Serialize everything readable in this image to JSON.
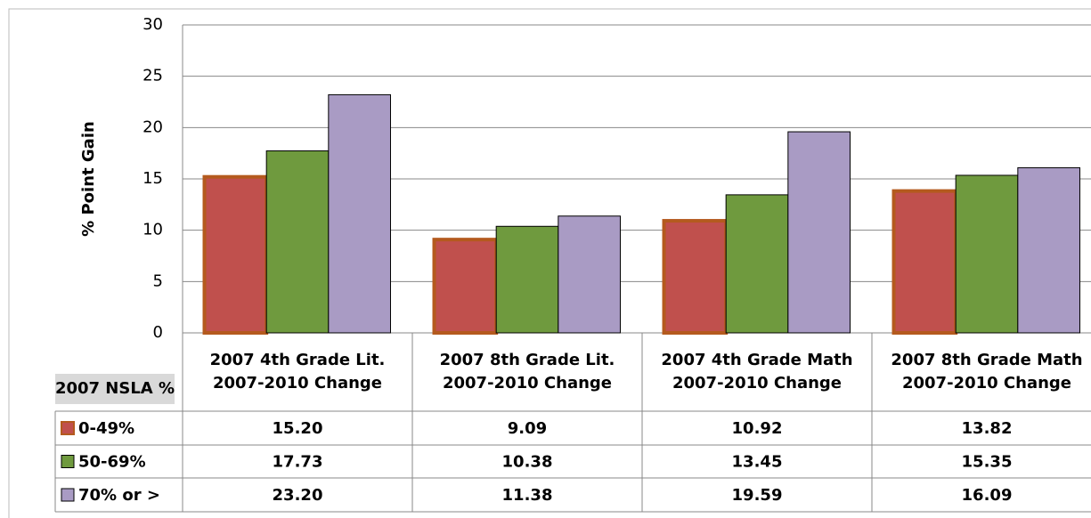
{
  "chart_data": {
    "type": "bar",
    "y_label": "% Point Gain",
    "table_header": "2007 NSLA %",
    "categories": [
      "2007 4th Grade Lit.\n2007-2010 Change",
      "2007 8th Grade Lit.\n2007-2010 Change",
      "2007 4th Grade Math\n2007-2010 Change",
      "2007 8th Grade Math\n2007-2010 Change"
    ],
    "series": [
      {
        "name": "0-49%",
        "color": "#c0504d",
        "edge_color": "#b45a1e",
        "values": [
          15.2,
          9.09,
          10.92,
          13.82
        ],
        "value_labels": [
          "15.20",
          "9.09",
          "10.92",
          "13.82"
        ]
      },
      {
        "name": "50-69%",
        "color": "#6f9a3e",
        "edge_color": "#000000",
        "values": [
          17.73,
          10.38,
          13.45,
          15.35
        ],
        "value_labels": [
          "17.73",
          "10.38",
          "13.45",
          "15.35"
        ]
      },
      {
        "name": "70% or >",
        "color": "#a99bc4",
        "edge_color": "#000000",
        "values": [
          23.2,
          11.38,
          19.59,
          16.09
        ],
        "value_labels": [
          "23.20",
          "11.38",
          "19.59",
          "16.09"
        ]
      }
    ],
    "ylim": [
      0,
      30
    ],
    "yticks": [
      0,
      5,
      10,
      15,
      20,
      25,
      30
    ],
    "grid": true
  }
}
